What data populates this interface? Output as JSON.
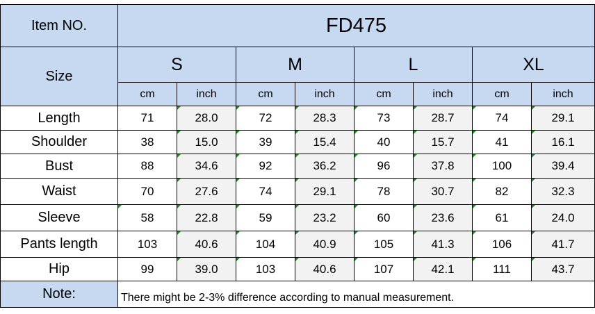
{
  "item_label": "Item NO.",
  "item_no": "FD475",
  "size_label": "Size",
  "sizes": [
    "S",
    "M",
    "L",
    "XL"
  ],
  "units": [
    "cm",
    "inch"
  ],
  "rows": [
    {
      "label": "Length",
      "values": [
        "71",
        "28.0",
        "72",
        "28.3",
        "73",
        "28.7",
        "74",
        "29.1"
      ]
    },
    {
      "label": "Shoulder",
      "values": [
        "38",
        "15.0",
        "39",
        "15.4",
        "40",
        "15.7",
        "41",
        "16.1"
      ]
    },
    {
      "label": "Bust",
      "values": [
        "88",
        "34.6",
        "92",
        "36.2",
        "96",
        "37.8",
        "100",
        "39.4"
      ]
    },
    {
      "label": "Waist",
      "values": [
        "70",
        "27.6",
        "74",
        "29.1",
        "78",
        "30.7",
        "82",
        "32.3"
      ]
    },
    {
      "label": "Sleeve",
      "values": [
        "58",
        "22.8",
        "59",
        "23.2",
        "60",
        "23.6",
        "61",
        "24.0"
      ]
    },
    {
      "label": "Pants length",
      "values": [
        "103",
        "40.6",
        "104",
        "40.9",
        "105",
        "41.3",
        "106",
        "41.7"
      ]
    },
    {
      "label": "Hip",
      "values": [
        "99",
        "39.0",
        "103",
        "40.6",
        "107",
        "42.1",
        "111",
        "43.7"
      ]
    }
  ],
  "note_label": "Note:",
  "note_text": "There might be 2-3% difference according to manual measurement.",
  "colors": {
    "header_blue": "#c6d9f0",
    "inch_gray": "#f2f2f2",
    "corner_marker": "#1a8a1a"
  }
}
